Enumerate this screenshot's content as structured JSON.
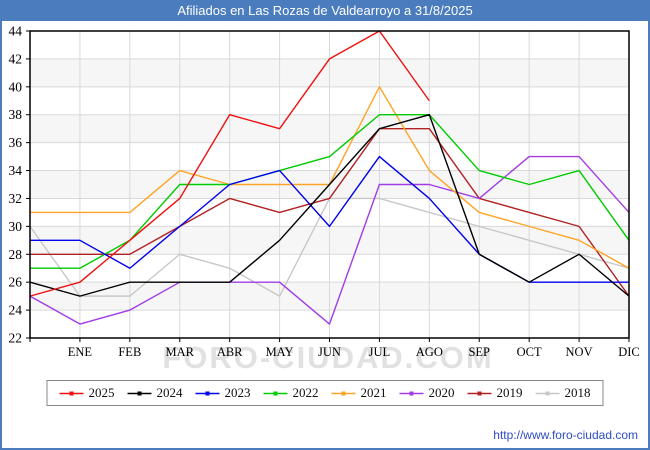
{
  "header": {
    "title": "Afiliados en Las Rozas de Valdearroyo a 31/8/2025",
    "bg_color": "#4a7cbe",
    "text_color": "#ffffff"
  },
  "watermark": "FORO-CIUDAD.COM",
  "footer": {
    "url": "http://www.foro-ciudad.com"
  },
  "chart_data": {
    "type": "line",
    "title": "Afiliados en Las Rozas de Valdearroyo a 31/8/2025",
    "xlabel": "",
    "ylabel": "",
    "ylim": [
      22,
      44
    ],
    "ytick_step": 2,
    "grid": true,
    "legend_position": "bottom",
    "categories": [
      "ENE",
      "FEB",
      "MAR",
      "ABR",
      "MAY",
      "JUN",
      "JUL",
      "AGO",
      "SEP",
      "OCT",
      "NOV",
      "DIC"
    ],
    "first_point_is_left_axis_edge": true,
    "series": [
      {
        "name": "2025",
        "color": "#ee1111",
        "values": [
          25,
          26,
          29,
          32,
          38,
          37,
          42,
          44,
          39
        ]
      },
      {
        "name": "2024",
        "color": "#000000",
        "values": [
          26,
          25,
          26,
          26,
          26,
          29,
          33,
          37,
          38,
          28,
          26,
          28,
          25
        ]
      },
      {
        "name": "2023",
        "color": "#0000ee",
        "values": [
          29,
          29,
          27,
          30,
          33,
          34,
          30,
          35,
          32,
          28,
          26,
          26,
          26
        ]
      },
      {
        "name": "2022",
        "color": "#00cc00",
        "values": [
          27,
          27,
          29,
          33,
          33,
          34,
          35,
          38,
          38,
          34,
          33,
          34,
          29
        ]
      },
      {
        "name": "2021",
        "color": "#ffa427",
        "values": [
          31,
          31,
          31,
          34,
          33,
          33,
          33,
          40,
          34,
          31,
          30,
          29,
          27
        ]
      },
      {
        "name": "2020",
        "color": "#a23ce6",
        "values": [
          25,
          23,
          24,
          26,
          26,
          26,
          23,
          33,
          33,
          32,
          35,
          35,
          31
        ]
      },
      {
        "name": "2019",
        "color": "#b22222",
        "values": [
          28,
          28,
          28,
          30,
          32,
          31,
          32,
          37,
          37,
          32,
          31,
          30,
          25
        ]
      },
      {
        "name": "2018",
        "color": "#c8c8c8",
        "values": [
          30,
          25,
          25,
          28,
          27,
          25,
          32,
          32,
          31,
          30,
          29,
          28,
          27
        ]
      }
    ]
  }
}
